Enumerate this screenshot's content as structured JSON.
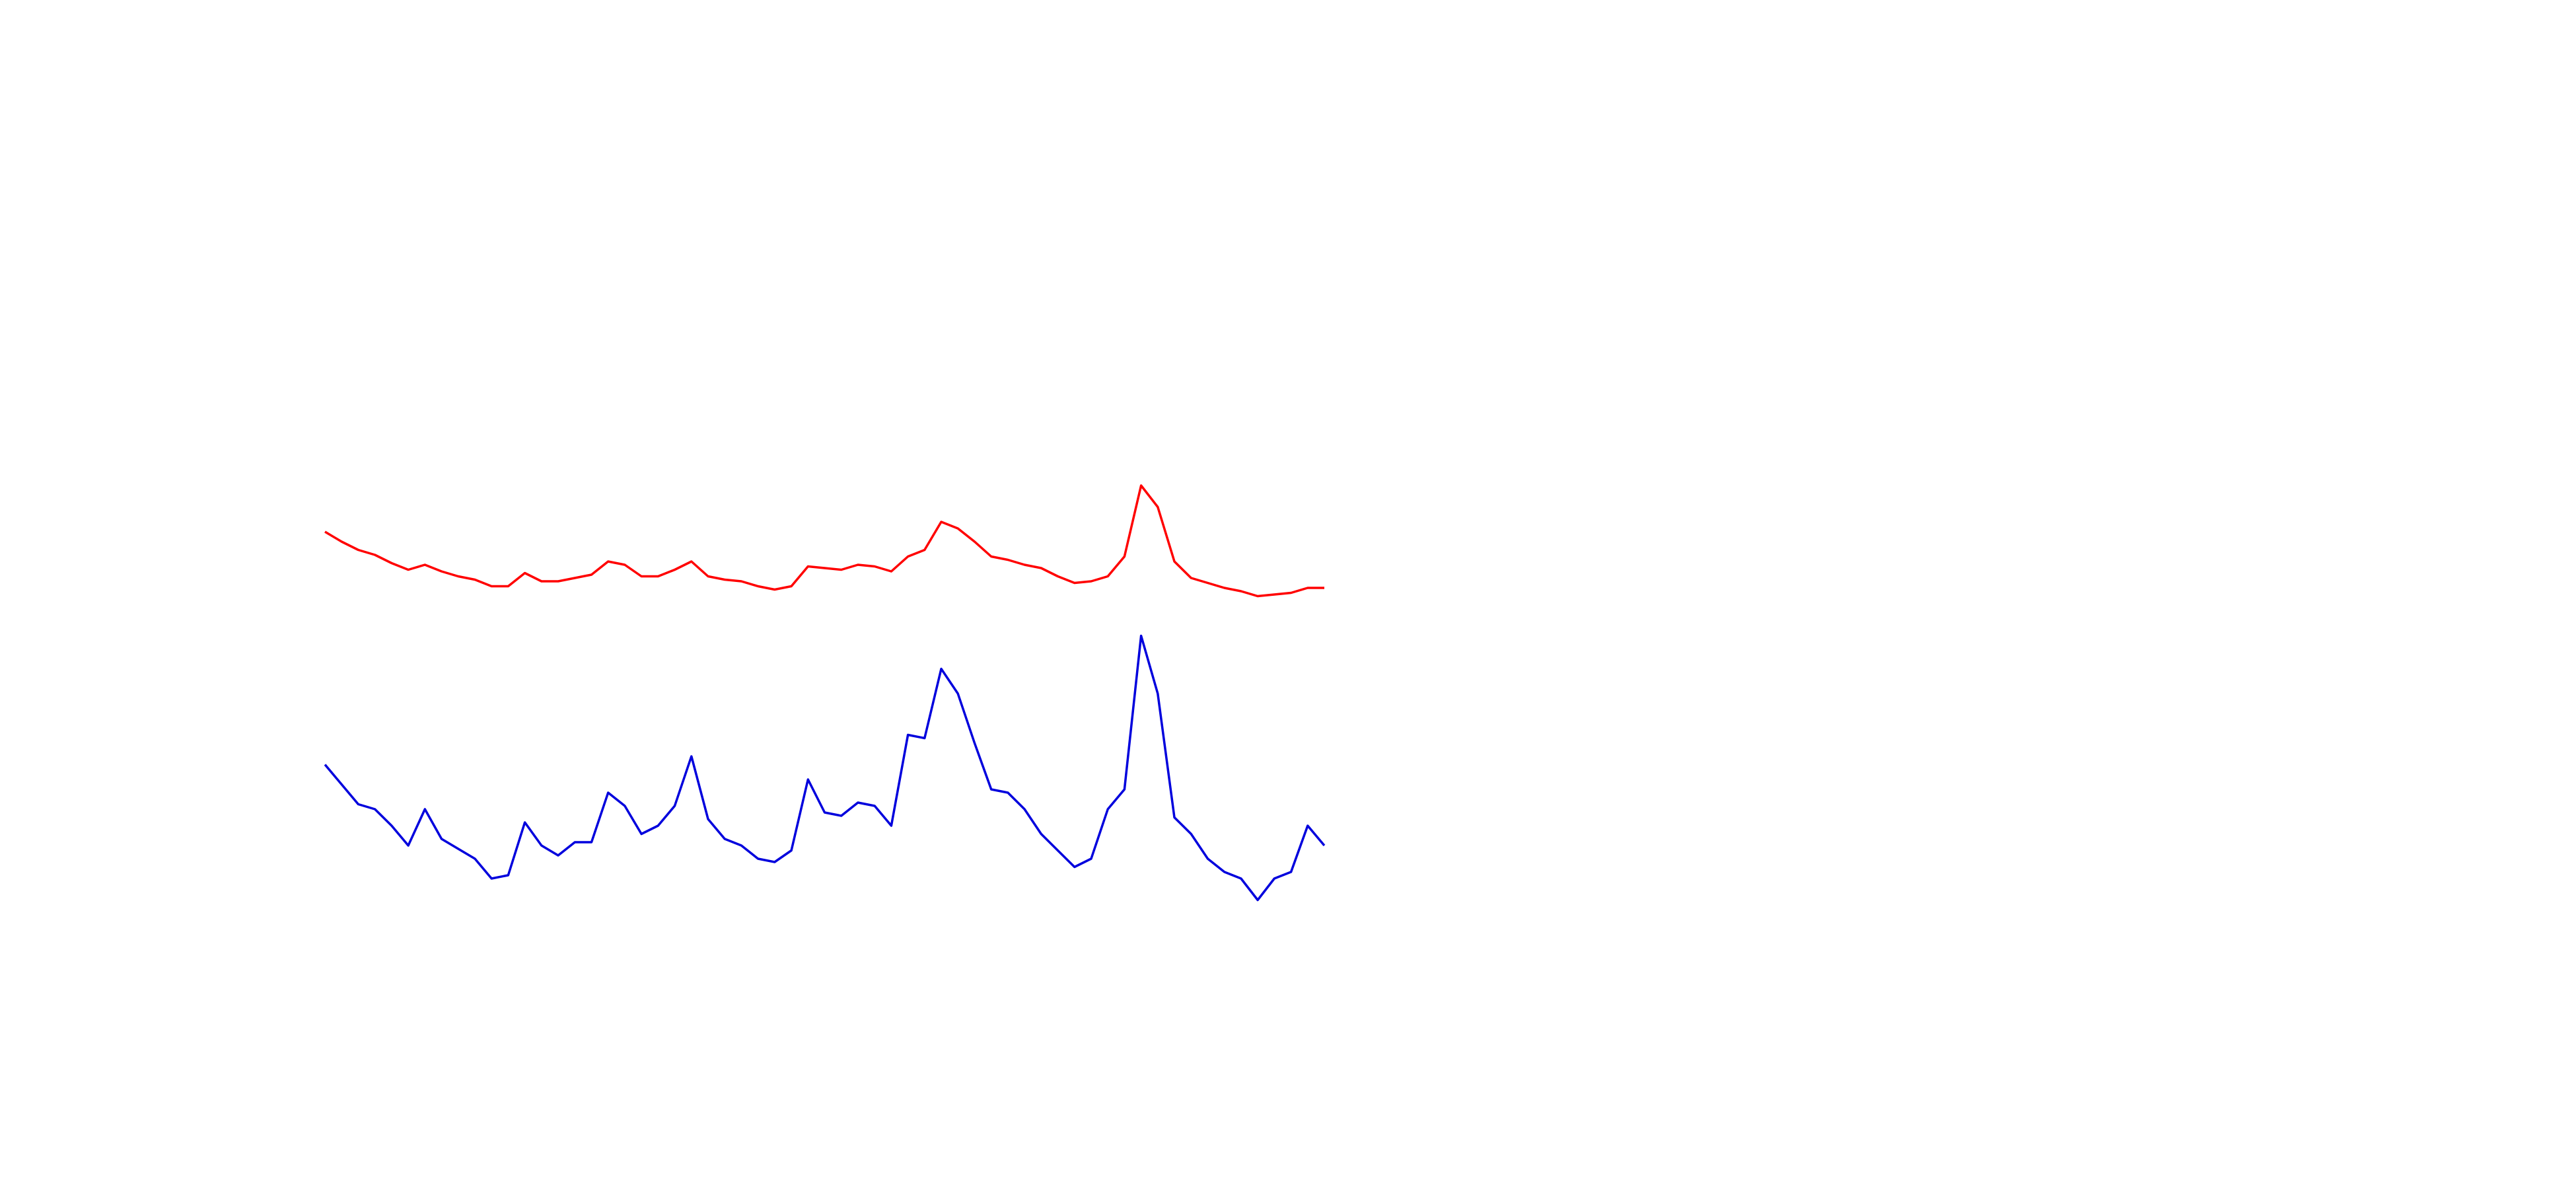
{
  "chart_data": {
    "type": "line",
    "series": [
      {
        "color": "#ff0000",
        "values": [
          398,
          392,
          387,
          384,
          379,
          375,
          378,
          374,
          371,
          369,
          365,
          365,
          373,
          368,
          368,
          370,
          372,
          380,
          378,
          371,
          371,
          375,
          380,
          371,
          369,
          368,
          365,
          363,
          365,
          377,
          376,
          375,
          378,
          377,
          374,
          383,
          387,
          404,
          400,
          392,
          383,
          381,
          378,
          376,
          371,
          367,
          368,
          371,
          383,
          426,
          413,
          380,
          370,
          367,
          364,
          362,
          359,
          360,
          361,
          364,
          364
        ]
      },
      {
        "color": "#0000dd",
        "values": [
          257,
          245,
          233,
          230,
          220,
          208,
          230,
          212,
          206,
          200,
          188,
          190,
          222,
          208,
          202,
          210,
          210,
          240,
          232,
          215,
          220,
          232,
          262,
          224,
          212,
          208,
          200,
          198,
          205,
          248,
          228,
          226,
          234,
          232,
          220,
          275,
          273,
          315,
          300,
          270,
          242,
          240,
          230,
          215,
          205,
          195,
          200,
          230,
          242,
          335,
          300,
          225,
          215,
          200,
          192,
          188,
          175,
          188,
          192,
          220,
          208
        ]
      }
    ],
    "ylim": [
      0,
      720
    ]
  }
}
